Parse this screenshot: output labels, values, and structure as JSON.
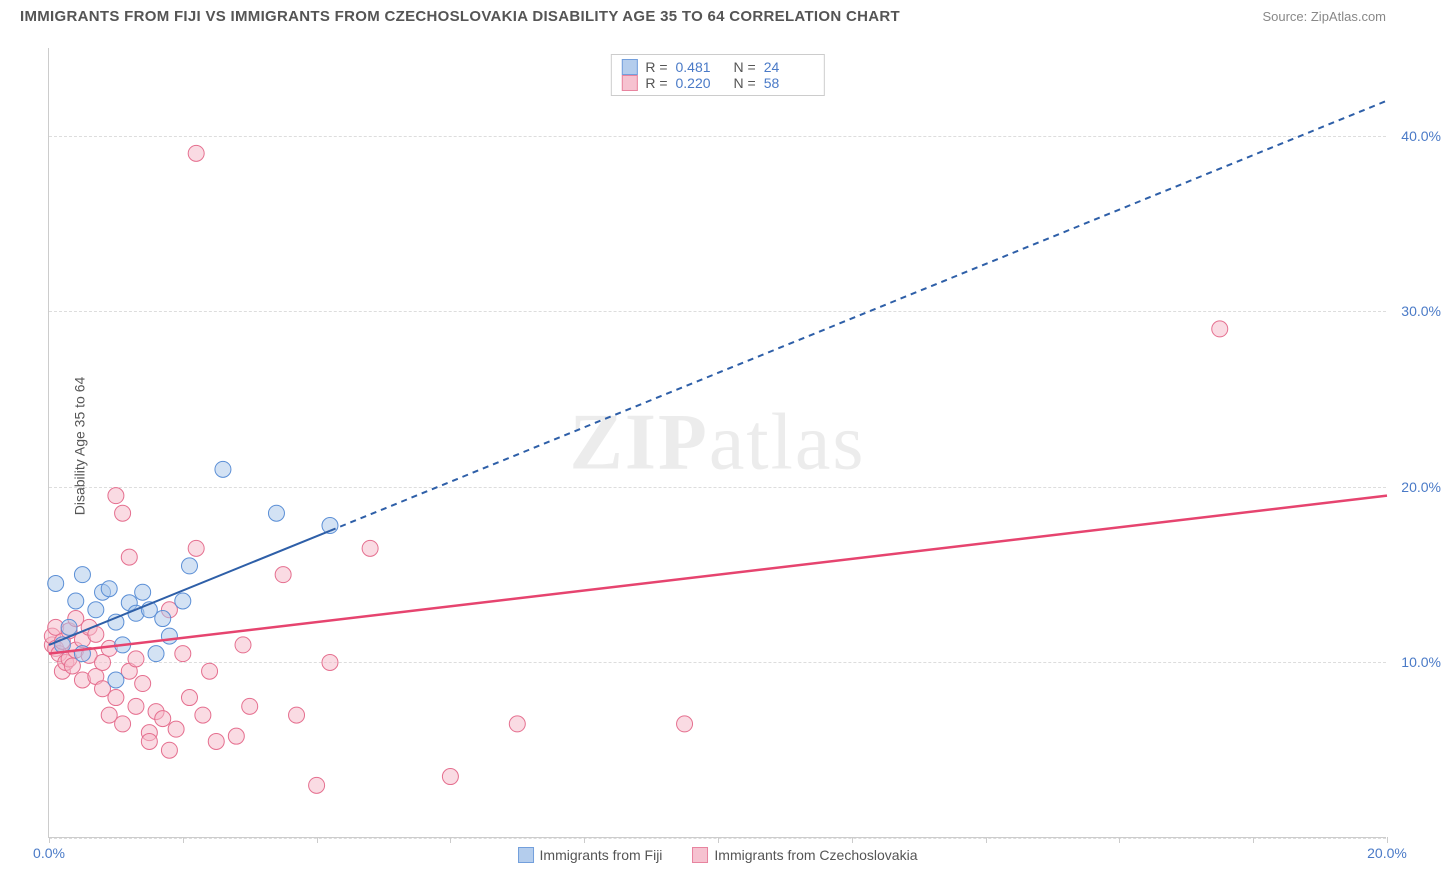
{
  "title": "IMMIGRANTS FROM FIJI VS IMMIGRANTS FROM CZECHOSLOVAKIA DISABILITY AGE 35 TO 64 CORRELATION CHART",
  "source": "Source: ZipAtlas.com",
  "ylabel": "Disability Age 35 to 64",
  "watermark_a": "ZIP",
  "watermark_b": "atlas",
  "chart": {
    "type": "scatter",
    "xlim": [
      0,
      20
    ],
    "ylim": [
      0,
      45
    ],
    "xtick_values": [
      0,
      2,
      4,
      6,
      8,
      10,
      12,
      14,
      16,
      18,
      20
    ],
    "xtick_labels": {
      "0": "0.0%",
      "20": "20.0%"
    },
    "ytick_values": [
      10,
      20,
      30,
      40
    ],
    "ytick_labels": [
      "10.0%",
      "20.0%",
      "30.0%",
      "40.0%"
    ],
    "grid_dash_values": [
      0,
      10,
      20,
      30,
      40
    ],
    "background_color": "#ffffff",
    "grid_color": "#dddddd",
    "axis_color": "#cccccc",
    "tick_label_color": "#4a7ac7",
    "series_a": {
      "label": "Immigrants from Fiji",
      "fill": "#a7c5ea",
      "stroke": "#5b8fd6",
      "fill_opacity": 0.5,
      "marker_radius": 8,
      "R": "0.481",
      "N": "24",
      "trend_solid": {
        "x1": 0,
        "y1": 11,
        "x2": 4.2,
        "y2": 17.5
      },
      "trend_dash": {
        "x1": 4.2,
        "y1": 17.5,
        "x2": 20,
        "y2": 42
      },
      "trend_color": "#2e5fa8",
      "trend_width": 2,
      "points": [
        [
          0.1,
          14.5
        ],
        [
          0.2,
          11
        ],
        [
          0.3,
          12
        ],
        [
          0.4,
          13.5
        ],
        [
          0.5,
          10.5
        ],
        [
          0.5,
          15
        ],
        [
          0.7,
          13
        ],
        [
          0.8,
          14
        ],
        [
          0.9,
          14.2
        ],
        [
          1.0,
          9.0
        ],
        [
          1.0,
          12.3
        ],
        [
          1.1,
          11.0
        ],
        [
          1.2,
          13.4
        ],
        [
          1.3,
          12.8
        ],
        [
          1.4,
          14.0
        ],
        [
          1.5,
          13.0
        ],
        [
          1.6,
          10.5
        ],
        [
          1.7,
          12.5
        ],
        [
          1.8,
          11.5
        ],
        [
          2.0,
          13.5
        ],
        [
          2.1,
          15.5
        ],
        [
          2.6,
          21.0
        ],
        [
          3.4,
          18.5
        ],
        [
          4.2,
          17.8
        ]
      ]
    },
    "series_b": {
      "label": "Immigrants from Czechoslovakia",
      "fill": "#f5b8c8",
      "stroke": "#e56f8f",
      "fill_opacity": 0.5,
      "marker_radius": 8,
      "R": "0.220",
      "N": "58",
      "trend_solid": {
        "x1": 0,
        "y1": 10.5,
        "x2": 20,
        "y2": 19.5
      },
      "trend_color": "#e6446f",
      "trend_width": 2.5,
      "points": [
        [
          0.05,
          11
        ],
        [
          0.05,
          11.5
        ],
        [
          0.1,
          10.8
        ],
        [
          0.1,
          12
        ],
        [
          0.15,
          10.5
        ],
        [
          0.2,
          11.2
        ],
        [
          0.2,
          9.5
        ],
        [
          0.25,
          10
        ],
        [
          0.3,
          11.8
        ],
        [
          0.3,
          10.2
        ],
        [
          0.35,
          9.8
        ],
        [
          0.4,
          12.5
        ],
        [
          0.4,
          10.7
        ],
        [
          0.5,
          11.3
        ],
        [
          0.5,
          9.0
        ],
        [
          0.6,
          10.4
        ],
        [
          0.6,
          12.0
        ],
        [
          0.7,
          11.6
        ],
        [
          0.7,
          9.2
        ],
        [
          0.8,
          10.0
        ],
        [
          0.8,
          8.5
        ],
        [
          0.9,
          7.0
        ],
        [
          0.9,
          10.8
        ],
        [
          1.0,
          8.0
        ],
        [
          1.0,
          19.5
        ],
        [
          1.1,
          18.5
        ],
        [
          1.1,
          6.5
        ],
        [
          1.2,
          16.0
        ],
        [
          1.2,
          9.5
        ],
        [
          1.3,
          7.5
        ],
        [
          1.3,
          10.2
        ],
        [
          1.4,
          8.8
        ],
        [
          1.5,
          6.0
        ],
        [
          1.5,
          5.5
        ],
        [
          1.6,
          7.2
        ],
        [
          1.7,
          6.8
        ],
        [
          1.8,
          5.0
        ],
        [
          1.8,
          13.0
        ],
        [
          1.9,
          6.2
        ],
        [
          2.0,
          10.5
        ],
        [
          2.1,
          8.0
        ],
        [
          2.2,
          16.5
        ],
        [
          2.2,
          39.0
        ],
        [
          2.3,
          7.0
        ],
        [
          2.4,
          9.5
        ],
        [
          2.5,
          5.5
        ],
        [
          2.8,
          5.8
        ],
        [
          2.9,
          11.0
        ],
        [
          3.0,
          7.5
        ],
        [
          3.5,
          15.0
        ],
        [
          3.7,
          7.0
        ],
        [
          4.0,
          3.0
        ],
        [
          4.2,
          10.0
        ],
        [
          4.8,
          16.5
        ],
        [
          6.0,
          3.5
        ],
        [
          7.0,
          6.5
        ],
        [
          9.5,
          6.5
        ],
        [
          17.5,
          29.0
        ]
      ]
    },
    "legend_top": {
      "r_label": "R  =",
      "n_label": "N  ="
    }
  }
}
